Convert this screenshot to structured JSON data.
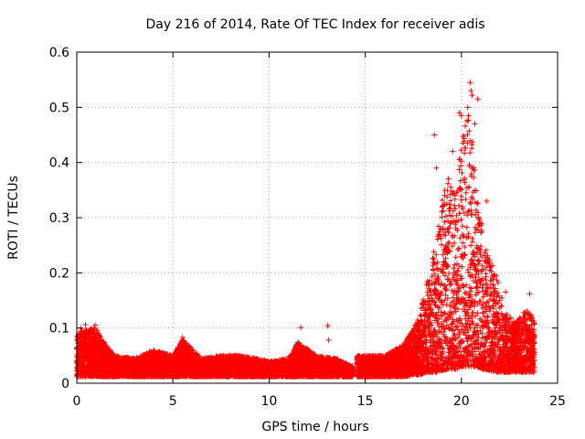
{
  "chart_data": {
    "type": "scatter",
    "title": "Day 216 of 2014, Rate Of TEC Index for receiver adis",
    "xlabel": "GPS time / hours",
    "ylabel": "ROTI / TECUs",
    "xlim": [
      0,
      25
    ],
    "ylim": [
      0,
      0.6
    ],
    "x_ticks": [
      0,
      5,
      10,
      15,
      20,
      25
    ],
    "y_ticks": [
      0,
      0.1,
      0.2,
      0.3,
      0.4,
      0.5,
      0.6
    ],
    "x_tick_labels": [
      "0",
      "5",
      "10",
      "15",
      "20",
      "25"
    ],
    "y_tick_labels": [
      "0",
      "0.1",
      "0.2",
      "0.3",
      "0.4",
      "0.5",
      "0.6"
    ],
    "grid": true,
    "marker": "+",
    "color": "#ff0000",
    "data_gap": [
      14.35,
      14.55
    ],
    "envelope": [
      {
        "x": 0.0,
        "upper": 0.09,
        "lower": 0.012
      },
      {
        "x": 0.5,
        "upper": 0.1,
        "lower": 0.012
      },
      {
        "x": 1.0,
        "upper": 0.1,
        "lower": 0.012
      },
      {
        "x": 1.5,
        "upper": 0.07,
        "lower": 0.012
      },
      {
        "x": 2.0,
        "upper": 0.05,
        "lower": 0.012
      },
      {
        "x": 3.0,
        "upper": 0.045,
        "lower": 0.012
      },
      {
        "x": 4.0,
        "upper": 0.06,
        "lower": 0.012
      },
      {
        "x": 5.0,
        "upper": 0.05,
        "lower": 0.012
      },
      {
        "x": 5.5,
        "upper": 0.08,
        "lower": 0.012
      },
      {
        "x": 6.5,
        "upper": 0.045,
        "lower": 0.012
      },
      {
        "x": 7.5,
        "upper": 0.05,
        "lower": 0.012
      },
      {
        "x": 8.5,
        "upper": 0.05,
        "lower": 0.012
      },
      {
        "x": 10.0,
        "upper": 0.04,
        "lower": 0.012
      },
      {
        "x": 11.0,
        "upper": 0.045,
        "lower": 0.012
      },
      {
        "x": 11.5,
        "upper": 0.075,
        "lower": 0.012
      },
      {
        "x": 12.5,
        "upper": 0.05,
        "lower": 0.012
      },
      {
        "x": 13.5,
        "upper": 0.045,
        "lower": 0.012
      },
      {
        "x": 14.3,
        "upper": 0.03,
        "lower": 0.012
      },
      {
        "x": 14.6,
        "upper": 0.05,
        "lower": 0.012
      },
      {
        "x": 16.0,
        "upper": 0.05,
        "lower": 0.012
      },
      {
        "x": 17.0,
        "upper": 0.07,
        "lower": 0.012
      },
      {
        "x": 17.8,
        "upper": 0.12,
        "lower": 0.015
      },
      {
        "x": 18.3,
        "upper": 0.2,
        "lower": 0.02
      },
      {
        "x": 18.8,
        "upper": 0.28,
        "lower": 0.02
      },
      {
        "x": 19.2,
        "upper": 0.38,
        "lower": 0.025
      },
      {
        "x": 19.7,
        "upper": 0.34,
        "lower": 0.025
      },
      {
        "x": 20.0,
        "upper": 0.45,
        "lower": 0.03
      },
      {
        "x": 20.4,
        "upper": 0.52,
        "lower": 0.03
      },
      {
        "x": 20.8,
        "upper": 0.36,
        "lower": 0.03
      },
      {
        "x": 21.2,
        "upper": 0.25,
        "lower": 0.025
      },
      {
        "x": 21.8,
        "upper": 0.2,
        "lower": 0.02
      },
      {
        "x": 22.3,
        "upper": 0.13,
        "lower": 0.02
      },
      {
        "x": 22.8,
        "upper": 0.11,
        "lower": 0.02
      },
      {
        "x": 23.4,
        "upper": 0.14,
        "lower": 0.02
      },
      {
        "x": 23.8,
        "upper": 0.11,
        "lower": 0.02
      }
    ],
    "outliers": [
      {
        "x": 0.2,
        "y": 0.1
      },
      {
        "x": 0.45,
        "y": 0.106
      },
      {
        "x": 0.95,
        "y": 0.105
      },
      {
        "x": 5.5,
        "y": 0.083
      },
      {
        "x": 11.65,
        "y": 0.101
      },
      {
        "x": 13.05,
        "y": 0.104
      },
      {
        "x": 13.1,
        "y": 0.078
      },
      {
        "x": 18.6,
        "y": 0.45
      },
      {
        "x": 18.7,
        "y": 0.39
      },
      {
        "x": 19.55,
        "y": 0.42
      },
      {
        "x": 19.9,
        "y": 0.49
      },
      {
        "x": 20.0,
        "y": 0.485
      },
      {
        "x": 20.45,
        "y": 0.545
      },
      {
        "x": 20.5,
        "y": 0.53
      },
      {
        "x": 20.55,
        "y": 0.522
      },
      {
        "x": 20.85,
        "y": 0.515
      },
      {
        "x": 20.7,
        "y": 0.47
      },
      {
        "x": 21.3,
        "y": 0.33
      },
      {
        "x": 22.3,
        "y": 0.165
      },
      {
        "x": 23.55,
        "y": 0.162
      }
    ]
  }
}
